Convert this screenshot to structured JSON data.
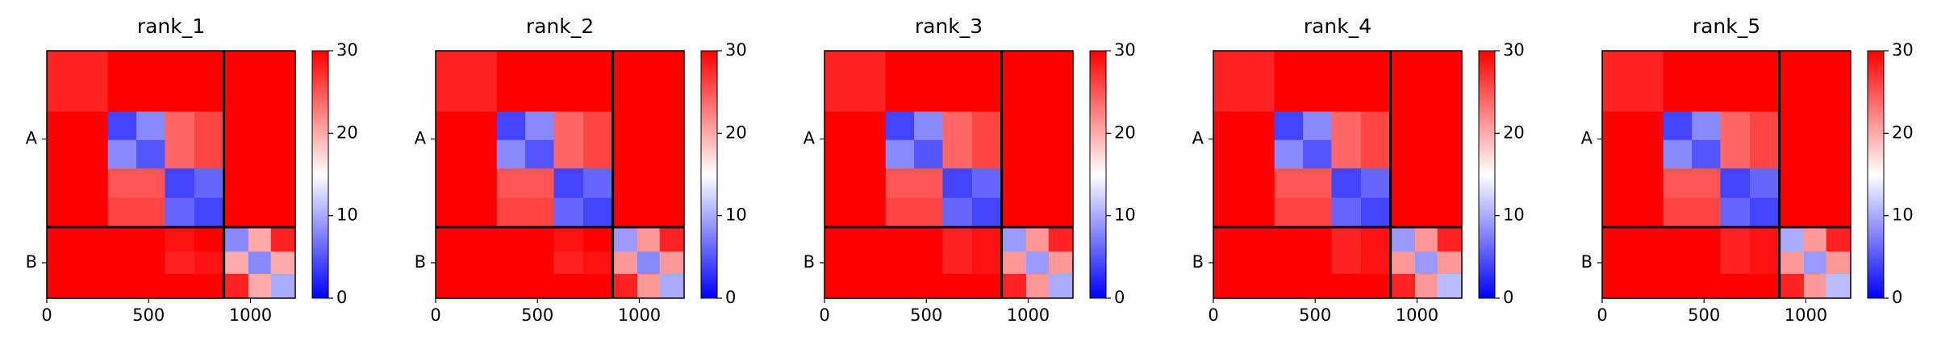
{
  "chart_data": [
    {
      "type": "heatmap",
      "title": "rank_1",
      "bins": [
        0,
        300,
        440,
        580,
        725,
        870,
        990,
        1100,
        1220
      ],
      "xlim": [
        0,
        1220
      ],
      "ylim": [
        1220,
        0
      ],
      "xticks": [
        0,
        500,
        1000
      ],
      "yticks": [
        {
          "value": 435,
          "label": "A"
        },
        {
          "value": 1045,
          "label": "B"
        }
      ],
      "chain_breaks": [
        870
      ],
      "clim": [
        0,
        30
      ],
      "cticks": [
        0,
        10,
        20,
        30
      ],
      "values": [
        [
          28,
          30,
          30,
          30,
          30,
          30,
          30,
          30
        ],
        [
          30,
          4,
          8,
          24,
          26,
          30,
          30,
          30
        ],
        [
          30,
          8,
          5,
          24,
          26,
          30,
          30,
          30
        ],
        [
          30,
          25,
          25,
          4,
          6,
          30,
          30,
          30
        ],
        [
          30,
          26,
          26,
          6,
          4,
          30,
          30,
          30
        ],
        [
          30,
          30,
          30,
          29,
          30,
          8,
          20,
          28
        ],
        [
          30,
          30,
          30,
          28,
          29,
          20,
          8,
          20
        ],
        [
          30,
          30,
          30,
          30,
          30,
          28,
          20,
          10
        ]
      ]
    },
    {
      "type": "heatmap",
      "title": "rank_2",
      "bins": [
        0,
        300,
        440,
        580,
        725,
        870,
        990,
        1100,
        1220
      ],
      "xlim": [
        0,
        1220
      ],
      "ylim": [
        1220,
        0
      ],
      "xticks": [
        0,
        500,
        1000
      ],
      "yticks": [
        {
          "value": 435,
          "label": "A"
        },
        {
          "value": 1045,
          "label": "B"
        }
      ],
      "chain_breaks": [
        870
      ],
      "clim": [
        0,
        30
      ],
      "cticks": [
        0,
        10,
        20,
        30
      ],
      "values": [
        [
          28,
          30,
          30,
          30,
          30,
          30,
          30,
          30
        ],
        [
          30,
          4,
          8,
          24,
          26,
          30,
          30,
          30
        ],
        [
          30,
          8,
          5,
          24,
          26,
          30,
          30,
          30
        ],
        [
          30,
          25,
          25,
          4,
          6,
          30,
          30,
          30
        ],
        [
          30,
          26,
          26,
          6,
          4,
          30,
          30,
          30
        ],
        [
          30,
          30,
          30,
          29,
          30,
          9,
          21,
          28
        ],
        [
          30,
          30,
          30,
          28,
          29,
          21,
          8,
          21
        ],
        [
          30,
          30,
          30,
          30,
          30,
          28,
          21,
          10
        ]
      ]
    },
    {
      "type": "heatmap",
      "title": "rank_3",
      "bins": [
        0,
        300,
        440,
        580,
        725,
        870,
        990,
        1100,
        1220
      ],
      "xlim": [
        0,
        1220
      ],
      "ylim": [
        1220,
        0
      ],
      "xticks": [
        0,
        500,
        1000
      ],
      "yticks": [
        {
          "value": 435,
          "label": "A"
        },
        {
          "value": 1045,
          "label": "B"
        }
      ],
      "chain_breaks": [
        870
      ],
      "clim": [
        0,
        30
      ],
      "cticks": [
        0,
        10,
        20,
        30
      ],
      "values": [
        [
          28,
          30,
          30,
          30,
          30,
          30,
          30,
          30
        ],
        [
          30,
          4,
          8,
          24,
          26,
          30,
          30,
          30
        ],
        [
          30,
          8,
          5,
          24,
          26,
          30,
          30,
          30
        ],
        [
          30,
          25,
          25,
          4,
          6,
          30,
          30,
          30
        ],
        [
          30,
          26,
          26,
          6,
          4,
          30,
          30,
          30
        ],
        [
          30,
          30,
          30,
          28,
          29,
          9,
          21,
          28
        ],
        [
          30,
          30,
          30,
          28,
          29,
          21,
          9,
          21
        ],
        [
          30,
          30,
          30,
          30,
          30,
          28,
          21,
          10
        ]
      ]
    },
    {
      "type": "heatmap",
      "title": "rank_4",
      "bins": [
        0,
        300,
        440,
        580,
        725,
        870,
        990,
        1100,
        1220
      ],
      "xlim": [
        0,
        1220
      ],
      "ylim": [
        1220,
        0
      ],
      "xticks": [
        0,
        500,
        1000
      ],
      "yticks": [
        {
          "value": 435,
          "label": "A"
        },
        {
          "value": 1045,
          "label": "B"
        }
      ],
      "chain_breaks": [
        870
      ],
      "clim": [
        0,
        30
      ],
      "cticks": [
        0,
        10,
        20,
        30
      ],
      "values": [
        [
          28,
          30,
          30,
          30,
          30,
          30,
          30,
          30
        ],
        [
          30,
          4,
          8,
          24,
          26,
          30,
          30,
          30
        ],
        [
          30,
          8,
          5,
          24,
          26,
          30,
          30,
          30
        ],
        [
          30,
          25,
          25,
          4,
          6,
          30,
          30,
          30
        ],
        [
          30,
          26,
          26,
          6,
          4,
          30,
          30,
          30
        ],
        [
          30,
          30,
          30,
          28,
          29,
          9,
          21,
          28
        ],
        [
          30,
          30,
          30,
          28,
          29,
          21,
          9,
          21
        ],
        [
          30,
          30,
          30,
          30,
          30,
          28,
          21,
          11
        ]
      ]
    },
    {
      "type": "heatmap",
      "title": "rank_5",
      "bins": [
        0,
        300,
        440,
        580,
        725,
        870,
        990,
        1100,
        1220
      ],
      "xlim": [
        0,
        1220
      ],
      "ylim": [
        1220,
        0
      ],
      "xticks": [
        0,
        500,
        1000
      ],
      "yticks": [
        {
          "value": 435,
          "label": "A"
        },
        {
          "value": 1045,
          "label": "B"
        }
      ],
      "chain_breaks": [
        870
      ],
      "clim": [
        0,
        30
      ],
      "cticks": [
        0,
        10,
        20,
        30
      ],
      "values": [
        [
          28,
          30,
          30,
          30,
          30,
          30,
          30,
          30
        ],
        [
          30,
          4,
          8,
          24,
          26,
          30,
          30,
          30
        ],
        [
          30,
          8,
          5,
          24,
          26,
          30,
          30,
          30
        ],
        [
          30,
          25,
          25,
          4,
          6,
          30,
          30,
          30
        ],
        [
          30,
          26,
          26,
          6,
          4,
          30,
          30,
          30
        ],
        [
          30,
          30,
          30,
          28,
          29,
          10,
          21,
          28
        ],
        [
          30,
          30,
          30,
          28,
          29,
          21,
          9,
          21
        ],
        [
          30,
          30,
          30,
          30,
          30,
          28,
          21,
          11
        ]
      ]
    }
  ]
}
